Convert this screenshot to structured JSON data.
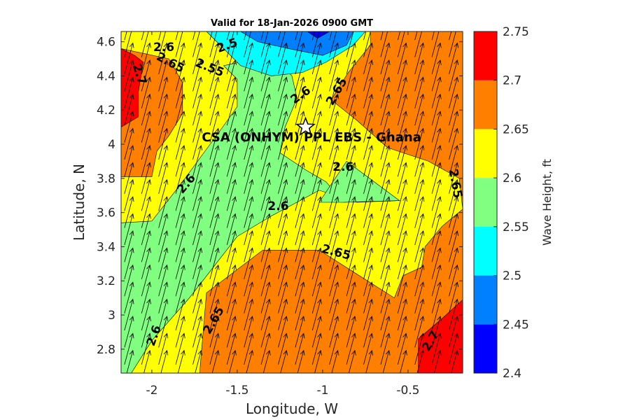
{
  "chart_data": {
    "type": "contour",
    "title": "Valid for 18-Jan-2026 0900 GMT",
    "xlabel": "Longitude, W",
    "ylabel": "Latitude, N",
    "colorbar_label": "Wave Height, ft",
    "xlim": [
      -2.18,
      -0.18
    ],
    "ylim": [
      2.66,
      4.66
    ],
    "x_ticks": [
      -2,
      -1.5,
      -1,
      -0.5
    ],
    "x_tick_labels": [
      "-2",
      "-1.5",
      "-1",
      "-0.5"
    ],
    "y_ticks": [
      2.8,
      3.0,
      3.2,
      3.4,
      3.6,
      3.8,
      4.0,
      4.2,
      4.4,
      4.6
    ],
    "y_tick_labels": [
      "2.8",
      "3",
      "3.2",
      "3.4",
      "3.6",
      "3.8",
      "4",
      "4.2",
      "4.4",
      "4.6"
    ],
    "colorbar_levels": [
      2.4,
      2.45,
      2.5,
      2.55,
      2.6,
      2.65,
      2.7,
      2.75
    ],
    "colorbar_tick_labels": [
      "2.4",
      "2.45",
      "2.5",
      "2.55",
      "2.6",
      "2.65",
      "2.7",
      "2.75"
    ],
    "colorbar_colors": [
      "#0000ff",
      "#0080ff",
      "#00ffff",
      "#80ff80",
      "#ffff00",
      "#ff8000",
      "#ff0000"
    ],
    "site": {
      "label": "CSA (ONHYM) PPL EBS  - Ghana",
      "lon": -1.1,
      "lat": 4.1,
      "marker": "star"
    },
    "contour_labels": [
      {
        "text": "2.6",
        "lon": -1.93,
        "lat": 4.57,
        "angle": 0
      },
      {
        "text": "2.5",
        "lon": -1.56,
        "lat": 4.58,
        "angle": -20
      },
      {
        "text": "2.65",
        "lon": -1.89,
        "lat": 4.48,
        "angle": 28
      },
      {
        "text": "2.55",
        "lon": -1.66,
        "lat": 4.45,
        "angle": 22
      },
      {
        "text": "2.7",
        "lon": -2.07,
        "lat": 4.41,
        "angle": 72
      },
      {
        "text": "2.6",
        "lon": -1.13,
        "lat": 4.29,
        "angle": -35
      },
      {
        "text": "2.65",
        "lon": -0.92,
        "lat": 4.31,
        "angle": -60
      },
      {
        "text": "2.6",
        "lon": -0.88,
        "lat": 3.87,
        "angle": 0
      },
      {
        "text": "2.65",
        "lon": -0.22,
        "lat": 3.77,
        "angle": 80
      },
      {
        "text": "2.6",
        "lon": -1.8,
        "lat": 3.77,
        "angle": -50
      },
      {
        "text": "2.6",
        "lon": -1.26,
        "lat": 3.64,
        "angle": 0
      },
      {
        "text": "2.65",
        "lon": -0.92,
        "lat": 3.37,
        "angle": 15
      },
      {
        "text": "2.65",
        "lon": -1.64,
        "lat": 2.97,
        "angle": -60
      },
      {
        "text": "2.6",
        "lon": -1.99,
        "lat": 2.88,
        "angle": -70
      },
      {
        "text": "2.7",
        "lon": -0.37,
        "lat": 2.85,
        "angle": -60
      }
    ],
    "regions": [
      {
        "level": 2.65,
        "color": "#ff8000",
        "points": [
          [
            -2.18,
            2.66
          ],
          [
            -0.18,
            2.66
          ],
          [
            -0.18,
            4.66
          ],
          [
            -2.18,
            4.66
          ]
        ]
      },
      {
        "level": 2.6,
        "color": "#ffff00",
        "points": [
          [
            -2.18,
            3.81
          ],
          [
            -2.0,
            3.81
          ],
          [
            -1.97,
            3.96
          ],
          [
            -1.9,
            4.05
          ],
          [
            -1.82,
            4.18
          ],
          [
            -1.82,
            4.36
          ],
          [
            -1.9,
            4.5
          ],
          [
            -2.18,
            4.56
          ],
          [
            -2.18,
            4.66
          ],
          [
            -0.72,
            4.66
          ],
          [
            -0.72,
            4.58
          ],
          [
            -0.85,
            4.42
          ],
          [
            -0.95,
            4.26
          ],
          [
            -0.8,
            4.14
          ],
          [
            -0.62,
            3.98
          ],
          [
            -0.38,
            3.9
          ],
          [
            -0.2,
            3.8
          ],
          [
            -0.18,
            3.62
          ],
          [
            -0.3,
            3.52
          ],
          [
            -0.4,
            3.4
          ],
          [
            -0.42,
            3.28
          ],
          [
            -0.53,
            3.23
          ],
          [
            -0.58,
            3.1
          ],
          [
            -1.02,
            3.38
          ],
          [
            -1.35,
            3.38
          ],
          [
            -1.68,
            3.13
          ],
          [
            -1.72,
            2.66
          ],
          [
            -2.18,
            2.66
          ]
        ]
      },
      {
        "level": 2.55,
        "color": "#80ff80",
        "points": [
          [
            -2.18,
            3.54
          ],
          [
            -2.0,
            3.55
          ],
          [
            -1.82,
            3.78
          ],
          [
            -1.6,
            4.08
          ],
          [
            -1.5,
            4.22
          ],
          [
            -1.5,
            4.38
          ],
          [
            -1.58,
            4.46
          ],
          [
            -1.3,
            4.52
          ],
          [
            -1.18,
            4.4
          ],
          [
            -1.15,
            4.27
          ],
          [
            -1.22,
            4.1
          ],
          [
            -1.25,
            3.95
          ],
          [
            -1.1,
            3.85
          ],
          [
            -0.98,
            3.78
          ],
          [
            -0.88,
            3.66
          ],
          [
            -0.55,
            3.67
          ],
          [
            -0.8,
            3.66
          ],
          [
            -1.02,
            3.73
          ],
          [
            -1.3,
            3.58
          ],
          [
            -1.5,
            3.46
          ],
          [
            -1.78,
            3.1
          ],
          [
            -2.0,
            2.85
          ],
          [
            -2.12,
            2.66
          ],
          [
            -2.18,
            2.66
          ]
        ]
      },
      {
        "level": 2.7,
        "color": "#ff0000",
        "points": [
          [
            -2.18,
            4.1
          ],
          [
            -2.08,
            4.16
          ],
          [
            -2.08,
            4.3
          ],
          [
            -2.05,
            4.48
          ],
          [
            -2.1,
            4.52
          ],
          [
            -2.18,
            4.56
          ]
        ]
      },
      {
        "level": 2.7,
        "color": "#ff0000",
        "points": [
          [
            -0.44,
            2.66
          ],
          [
            -0.18,
            2.66
          ],
          [
            -0.18,
            3.09
          ],
          [
            -0.3,
            2.98
          ],
          [
            -0.44,
            2.86
          ]
        ]
      },
      {
        "level": 2.55,
        "color": "#80ff80",
        "points": [
          [
            -1.02,
            3.66
          ],
          [
            -0.86,
            3.9
          ],
          [
            -0.55,
            3.67
          ],
          [
            -0.88,
            3.66
          ]
        ]
      },
      {
        "level": 2.55,
        "color": "#00ffff",
        "points": [
          [
            -1.68,
            4.66
          ],
          [
            -1.48,
            4.46
          ],
          [
            -1.3,
            4.4
          ],
          [
            -1.12,
            4.42
          ],
          [
            -0.98,
            4.48
          ],
          [
            -0.82,
            4.58
          ],
          [
            -0.75,
            4.66
          ]
        ]
      },
      {
        "level": 2.45,
        "color": "#0080ff",
        "points": [
          [
            -1.48,
            4.66
          ],
          [
            -1.38,
            4.6
          ],
          [
            -1.2,
            4.56
          ],
          [
            -1.0,
            4.52
          ],
          [
            -0.86,
            4.58
          ],
          [
            -0.82,
            4.66
          ]
        ]
      },
      {
        "level": 2.4,
        "color": "#0000ff",
        "points": [
          [
            -1.09,
            4.66
          ],
          [
            -1.03,
            4.62
          ],
          [
            -0.96,
            4.66
          ]
        ]
      }
    ],
    "vector_field": {
      "direction_deg": 15,
      "lon_step": 0.1,
      "lat_step": 0.1,
      "description": "waves propagating toward north-north-east"
    }
  }
}
